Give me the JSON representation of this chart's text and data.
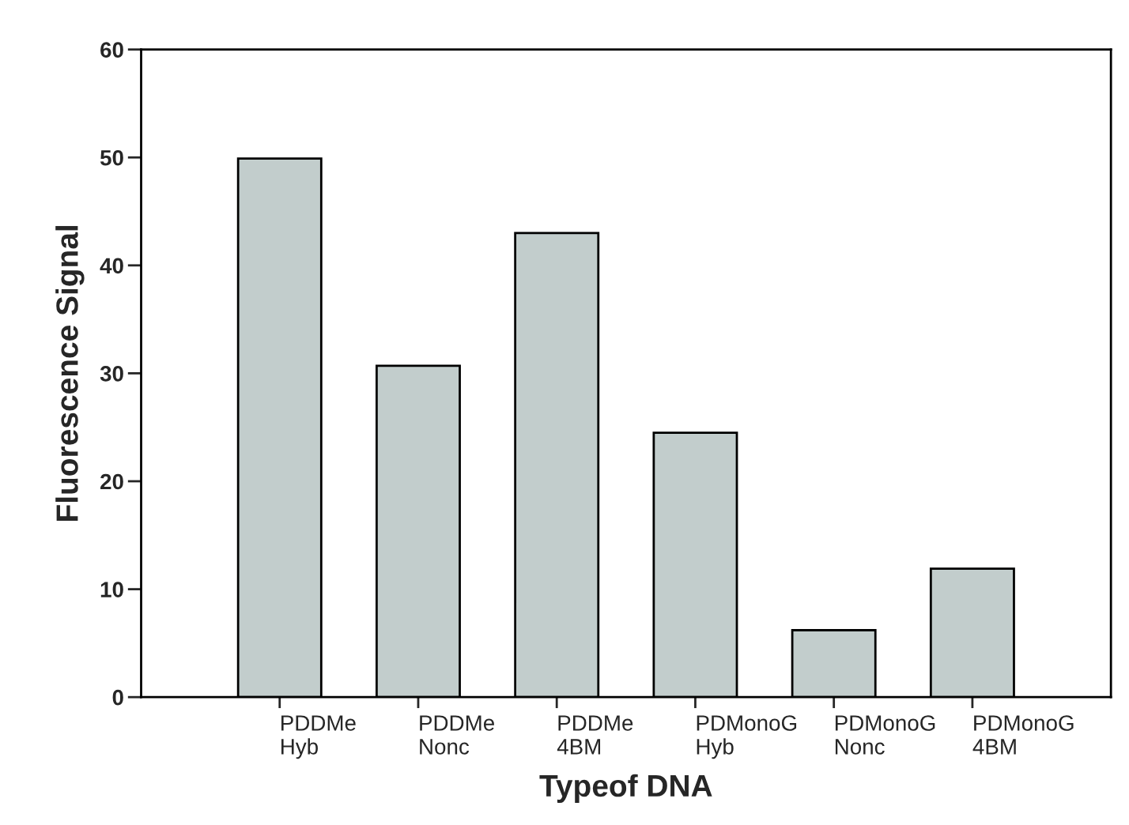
{
  "chart_data": {
    "type": "bar",
    "xlabel": "Typeof DNA",
    "ylabel": "Fluorescence Signal",
    "categories": [
      "PDDMe\nHyb",
      "PDDMe\nNonc",
      "PDDMe\n4BM",
      "PDMonoG\nHyb",
      "PDMonoG\nNonc",
      "PDMonoG\n4BM"
    ],
    "values": [
      49.9,
      30.7,
      43.0,
      24.5,
      6.2,
      11.9
    ],
    "color": "#c2cdcc",
    "ylim": [
      0,
      60
    ],
    "yticks": [
      0,
      10,
      20,
      30,
      40,
      50,
      60
    ],
    "grid": false,
    "legend": false
  }
}
